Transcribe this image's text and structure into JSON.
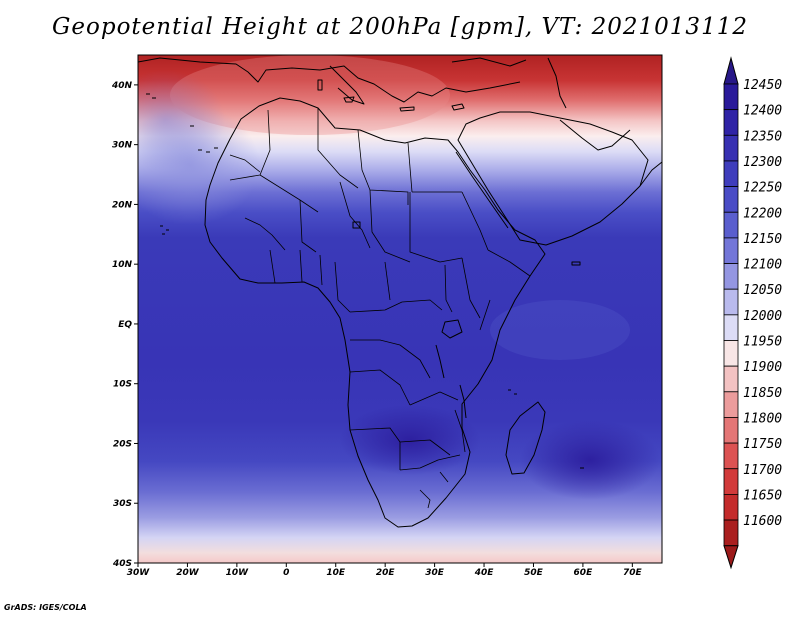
{
  "title": "Geopotential Height at 200hPa [gpm], VT: 2021013112",
  "credit": "GrADS: IGES/COLA",
  "map": {
    "lon_range": [
      -30,
      76
    ],
    "lat_range": [
      -40,
      45
    ],
    "lat_ticks": [
      {
        "lat": 40,
        "label": "40N"
      },
      {
        "lat": 30,
        "label": "30N"
      },
      {
        "lat": 20,
        "label": "20N"
      },
      {
        "lat": 10,
        "label": "10N"
      },
      {
        "lat": 0,
        "label": "EQ"
      },
      {
        "lat": -10,
        "label": "10S"
      },
      {
        "lat": -20,
        "label": "20S"
      },
      {
        "lat": -30,
        "label": "30S"
      },
      {
        "lat": -40,
        "label": "40S"
      }
    ],
    "lon_ticks": [
      {
        "lon": -30,
        "label": "30W"
      },
      {
        "lon": -20,
        "label": "20W"
      },
      {
        "lon": -10,
        "label": "10W"
      },
      {
        "lon": 0,
        "label": "0"
      },
      {
        "lon": 10,
        "label": "10E"
      },
      {
        "lon": 20,
        "label": "20E"
      },
      {
        "lon": 30,
        "label": "30E"
      },
      {
        "lon": 40,
        "label": "40E"
      },
      {
        "lon": 50,
        "label": "50E"
      },
      {
        "lon": 60,
        "label": "60E"
      },
      {
        "lon": 70,
        "label": "70E"
      }
    ]
  },
  "colorbar": {
    "levels": [
      {
        "label": "12450",
        "color": "#2a1a9a"
      },
      {
        "label": "12400",
        "color": "#2f23a6"
      },
      {
        "label": "12350",
        "color": "#3730b2"
      },
      {
        "label": "12300",
        "color": "#3f3dbc"
      },
      {
        "label": "12250",
        "color": "#4a4cc6"
      },
      {
        "label": "12200",
        "color": "#5a5ece"
      },
      {
        "label": "12150",
        "color": "#7376d8"
      },
      {
        "label": "12100",
        "color": "#9496e2"
      },
      {
        "label": "12050",
        "color": "#b9baed"
      },
      {
        "label": "12000",
        "color": "#dcdcf6"
      },
      {
        "label": "11950",
        "color": "#f8e6e6"
      },
      {
        "label": "11900",
        "color": "#f3c2c2"
      },
      {
        "label": "11850",
        "color": "#ec9c9c"
      },
      {
        "label": "11800",
        "color": "#e47676"
      },
      {
        "label": "11750",
        "color": "#dc5252"
      },
      {
        "label": "11700",
        "color": "#d23a3a"
      },
      {
        "label": "11650",
        "color": "#c42b2b"
      },
      {
        "label": "11600",
        "color": "#aa1f1f"
      }
    ],
    "top_arrow_color": "#281888",
    "bottom_arrow_color": "#9c1a1a"
  }
}
